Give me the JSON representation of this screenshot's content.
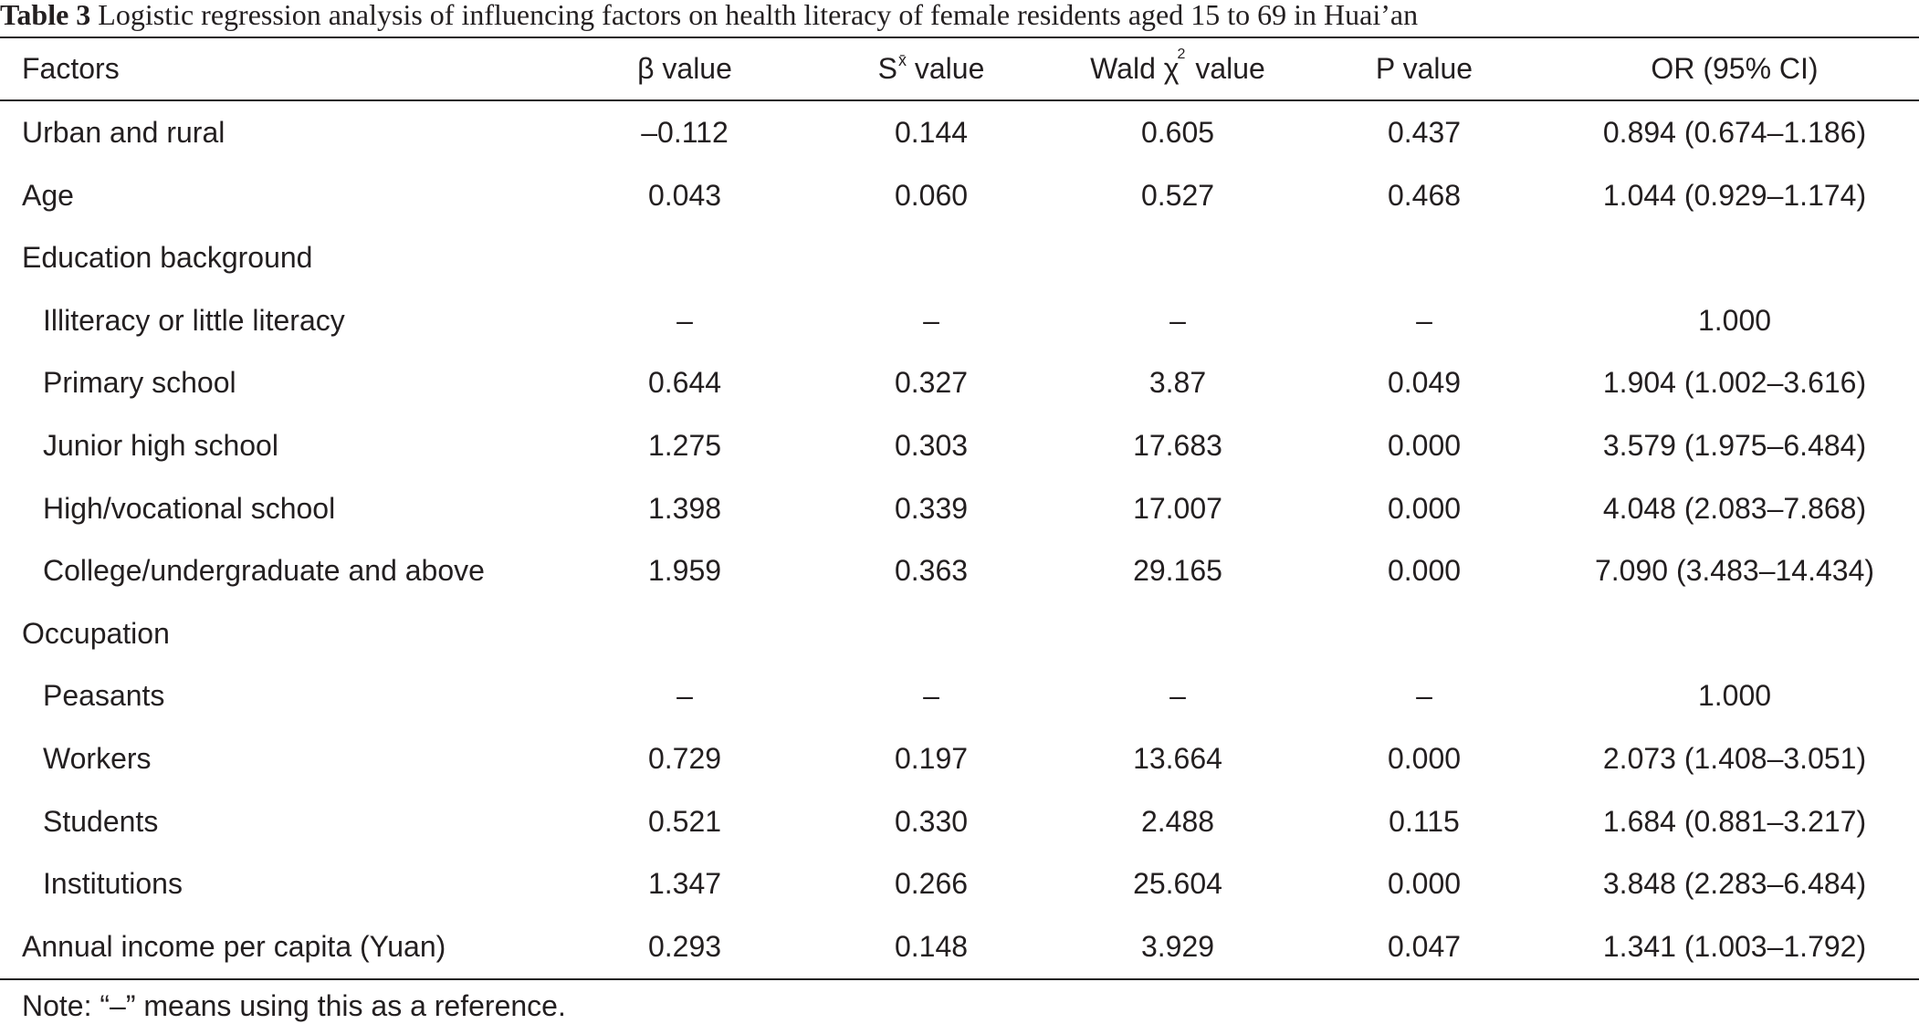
{
  "caption": {
    "label": "Table 3",
    "text": "Logistic regression analysis of influencing factors on health literacy of female residents aged 15 to 69 in Huai’an"
  },
  "header": {
    "factors": "Factors",
    "beta": "β value",
    "se_base": "S",
    "se_sup": "x̄",
    "se_rest": " value",
    "wald_base": "Wald χ",
    "wald_sup": "2",
    "wald_rest": " value",
    "p": "P value",
    "or": "OR (95% CI)"
  },
  "rows": [
    {
      "factor": "Urban and rural",
      "indent": false,
      "beta": "–0.112",
      "se": "0.144",
      "wald": "0.605",
      "p": "0.437",
      "or": "0.894 (0.674–1.186)"
    },
    {
      "factor": "Age",
      "indent": false,
      "beta": "0.043",
      "se": "0.060",
      "wald": "0.527",
      "p": "0.468",
      "or": "1.044 (0.929–1.174)"
    },
    {
      "factor": "Education background",
      "indent": false,
      "beta": "",
      "se": "",
      "wald": "",
      "p": "",
      "or": ""
    },
    {
      "factor": "Illiteracy or little literacy",
      "indent": true,
      "beta": "–",
      "se": "–",
      "wald": "–",
      "p": "–",
      "or": "1.000"
    },
    {
      "factor": "Primary school",
      "indent": true,
      "beta": "0.644",
      "se": "0.327",
      "wald": "3.87",
      "p": "0.049",
      "or": "1.904 (1.002–3.616)"
    },
    {
      "factor": "Junior high school",
      "indent": true,
      "beta": "1.275",
      "se": "0.303",
      "wald": "17.683",
      "p": "0.000",
      "or": "3.579 (1.975–6.484)"
    },
    {
      "factor": "High/vocational school",
      "indent": true,
      "beta": "1.398",
      "se": "0.339",
      "wald": "17.007",
      "p": "0.000",
      "or": "4.048 (2.083–7.868)"
    },
    {
      "factor": "College/undergraduate and above",
      "indent": true,
      "beta": "1.959",
      "se": "0.363",
      "wald": "29.165",
      "p": "0.000",
      "or": "7.090 (3.483–14.434)"
    },
    {
      "factor": "Occupation",
      "indent": false,
      "beta": "",
      "se": "",
      "wald": "",
      "p": "",
      "or": ""
    },
    {
      "factor": "Peasants",
      "indent": true,
      "beta": "–",
      "se": "–",
      "wald": "–",
      "p": "–",
      "or": "1.000"
    },
    {
      "factor": "Workers",
      "indent": true,
      "beta": "0.729",
      "se": "0.197",
      "wald": "13.664",
      "p": "0.000",
      "or": "2.073 (1.408–3.051)"
    },
    {
      "factor": "Students",
      "indent": true,
      "beta": "0.521",
      "se": "0.330",
      "wald": "2.488",
      "p": "0.115",
      "or": "1.684 (0.881–3.217)"
    },
    {
      "factor": "Institutions",
      "indent": true,
      "beta": "1.347",
      "se": "0.266",
      "wald": "25.604",
      "p": "0.000",
      "or": "3.848 (2.283–6.484)"
    },
    {
      "factor": "Annual income per capita (Yuan)",
      "indent": false,
      "beta": "0.293",
      "se": "0.148",
      "wald": "3.929",
      "p": "0.047",
      "or": "1.341 (1.003–1.792)"
    }
  ],
  "note": "Note: “–” means using this as a reference."
}
